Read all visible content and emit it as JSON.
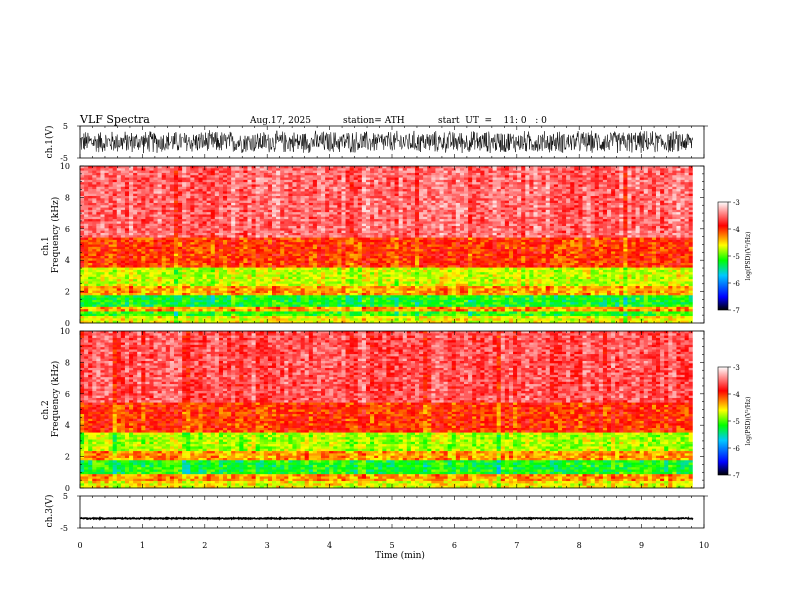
{
  "header": {
    "title": "VLF  Spectra",
    "date": "Aug.17, 2025",
    "station": "station= ATH",
    "start": "start  UT  =    11: 0   : 0"
  },
  "chart_data": [
    {
      "type": "line",
      "id": "ch1",
      "ylabel": "ch.1(V)",
      "ylim": [
        -5,
        5
      ],
      "yticks": [
        5,
        -5
      ],
      "xlim": [
        0,
        10
      ],
      "data_extent_min": 9.82,
      "description": "dense waveform filling most of the range",
      "amplitude": 3.8
    },
    {
      "type": "heatmap",
      "id": "ch1-spec",
      "ylabel_top": "ch.1",
      "ylabel": "Frequency  (kHz)",
      "ylim": [
        0,
        10
      ],
      "yticks": [
        "0",
        "2",
        "4",
        "6",
        "8",
        "10"
      ],
      "xlim": [
        0,
        10
      ],
      "bands": [
        {
          "f0": 0.0,
          "f1": 0.45,
          "level": -4.6
        },
        {
          "f0": 0.45,
          "f1": 0.8,
          "level": -5.1
        },
        {
          "f0": 0.8,
          "f1": 1.0,
          "level": -4.3
        },
        {
          "f0": 1.0,
          "f1": 1.8,
          "level": -5.2
        },
        {
          "f0": 1.8,
          "f1": 2.4,
          "level": -4.3
        },
        {
          "f0": 2.4,
          "f1": 3.5,
          "level": -4.7
        },
        {
          "f0": 3.5,
          "f1": 5.5,
          "level": -4.0
        },
        {
          "f0": 5.5,
          "f1": 10.0,
          "level": -3.5
        }
      ]
    },
    {
      "type": "heatmap",
      "id": "ch2-spec",
      "ylabel_top": "ch.2",
      "ylabel": "Frequency  (kHz)",
      "ylim": [
        0,
        10
      ],
      "yticks": [
        "0",
        "2",
        "4",
        "6",
        "8",
        "10"
      ],
      "xlim": [
        0,
        10
      ],
      "bands": [
        {
          "f0": 0.0,
          "f1": 0.5,
          "level": -4.6
        },
        {
          "f0": 0.5,
          "f1": 0.9,
          "level": -4.3
        },
        {
          "f0": 0.9,
          "f1": 1.8,
          "level": -5.2
        },
        {
          "f0": 1.8,
          "f1": 2.4,
          "level": -4.3
        },
        {
          "f0": 2.4,
          "f1": 3.5,
          "level": -4.8
        },
        {
          "f0": 3.5,
          "f1": 5.5,
          "level": -4.0
        },
        {
          "f0": 5.5,
          "f1": 10.0,
          "level": -3.6
        }
      ]
    },
    {
      "type": "line",
      "id": "ch3",
      "ylabel": "ch.3(V)",
      "ylim": [
        -5,
        5
      ],
      "yticks": [
        5,
        -5
      ],
      "xlim": [
        0,
        10
      ],
      "xlabel": "Time  (min)",
      "xticks": [
        "0",
        "1",
        "2",
        "3",
        "4",
        "5",
        "6",
        "7",
        "8",
        "9",
        "10"
      ],
      "data_extent_min": 9.82,
      "description": "nearly flat trace near -2 V",
      "level": -2,
      "amplitude": 0.15
    }
  ],
  "colorbar": {
    "label": "log(PSD)(V²/Hz)",
    "ticks": [
      "-3",
      "-4",
      "-5",
      "-6",
      "-7"
    ],
    "range": [
      -7,
      -3
    ],
    "colors": [
      "#000000",
      "#0000ff",
      "#00c8ff",
      "#00ff00",
      "#ffff00",
      "#ff0000",
      "#ffffff"
    ]
  }
}
